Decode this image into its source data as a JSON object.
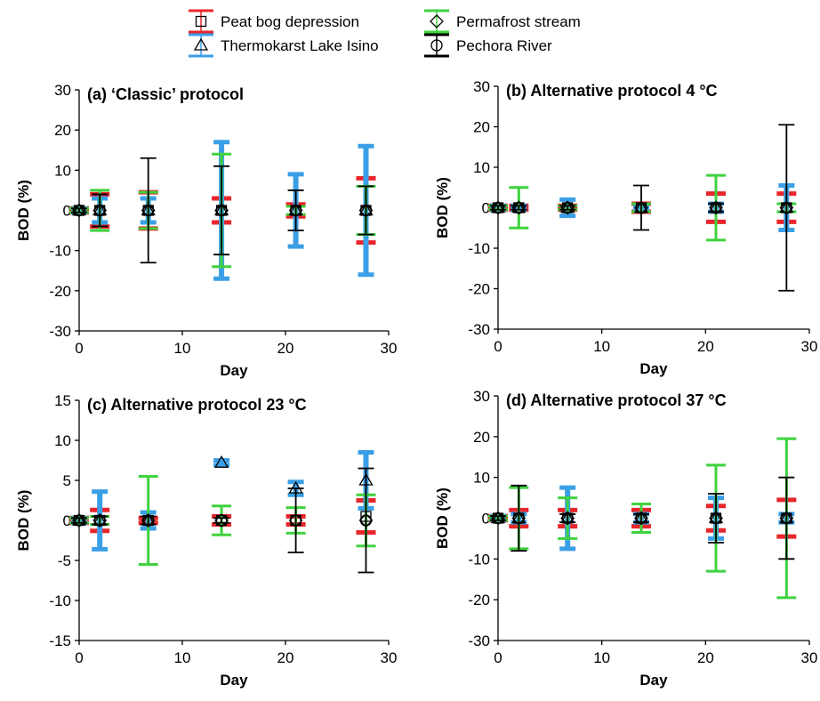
{
  "legend": {
    "items": [
      {
        "label": "Peat bog depression",
        "color": "#e8262b",
        "marker": "square"
      },
      {
        "label": "Permafrost stream",
        "color": "#3fd23f",
        "marker": "diamond"
      },
      {
        "label": "Thermokarst Lake Isino",
        "color": "#3b9fe6",
        "marker": "triangle"
      },
      {
        "label": "Pechora River",
        "color": "#000000",
        "marker": "circle"
      }
    ]
  },
  "chart_data": [
    {
      "type": "scatter",
      "panel": "a",
      "title": "(a) ‘Classic’ protocol",
      "xlabel": "Day",
      "ylabel": "BOD (%)",
      "xlim": [
        0,
        30
      ],
      "ylim": [
        -30,
        30
      ],
      "xticks": [
        "0",
        "10",
        "20",
        "30"
      ],
      "yticks": [
        "-30",
        "-20",
        "-10",
        "0",
        "10",
        "20",
        "30"
      ],
      "series": [
        {
          "name": "Peat bog depression",
          "x": [
            0,
            2,
            6.7,
            13.8,
            21,
            27.8
          ],
          "y": [
            0,
            0,
            0,
            0,
            0,
            0
          ],
          "err": [
            0.5,
            4,
            4.5,
            3,
            1.5,
            8
          ]
        },
        {
          "name": "Thermokarst Lake Isino",
          "x": [
            0,
            2,
            6.7,
            13.8,
            21,
            27.8
          ],
          "y": [
            0,
            0,
            0,
            0,
            0,
            0
          ],
          "err": [
            0.5,
            3,
            3,
            17,
            9,
            16
          ]
        },
        {
          "name": "Permafrost stream",
          "x": [
            0,
            2,
            6.7,
            13.8,
            21,
            27.8
          ],
          "y": [
            0,
            0,
            0,
            0,
            0,
            0
          ],
          "err": [
            0.5,
            5,
            4.5,
            14,
            1,
            6
          ]
        },
        {
          "name": "Pechora River",
          "x": [
            0,
            2,
            6.7,
            13.8,
            21,
            27.8
          ],
          "y": [
            0,
            0,
            0,
            0,
            0,
            0
          ],
          "err": [
            0.5,
            4,
            13,
            11,
            5,
            6
          ]
        }
      ]
    },
    {
      "type": "scatter",
      "panel": "b",
      "title": "(b) Alternative protocol 4 °C",
      "xlabel": "Day",
      "ylabel": "BOD (%)",
      "xlim": [
        0,
        30
      ],
      "ylim": [
        -30,
        30
      ],
      "xticks": [
        "0",
        "10",
        "20",
        "30"
      ],
      "yticks": [
        "-30",
        "-20",
        "-10",
        "0",
        "10",
        "20",
        "30"
      ],
      "series": [
        {
          "name": "Peat bog depression",
          "x": [
            0,
            2,
            6.7,
            13.8,
            21,
            27.8
          ],
          "y": [
            0,
            0,
            0,
            0,
            0,
            0
          ],
          "err": [
            0.5,
            0.5,
            0.5,
            1,
            3.5,
            3.5
          ]
        },
        {
          "name": "Thermokarst Lake Isino",
          "x": [
            0,
            2,
            6.7,
            13.8,
            21,
            27.8
          ],
          "y": [
            0,
            0,
            0,
            0,
            0,
            0
          ],
          "err": [
            0.5,
            0.5,
            2,
            0.5,
            1,
            5.5
          ]
        },
        {
          "name": "Permafrost stream",
          "x": [
            0,
            2,
            6.7,
            13.8,
            21,
            27.8
          ],
          "y": [
            0,
            0,
            0,
            0,
            0,
            0
          ],
          "err": [
            0.5,
            5,
            0.5,
            1,
            8,
            1
          ]
        },
        {
          "name": "Pechora River",
          "x": [
            0,
            2,
            6.7,
            13.8,
            21,
            27.8
          ],
          "y": [
            0,
            0,
            0,
            0,
            0,
            0
          ],
          "err": [
            0.5,
            0.5,
            0.5,
            5.5,
            1,
            20.5
          ]
        }
      ]
    },
    {
      "type": "scatter",
      "panel": "c",
      "title": "(c) Alternative protocol 23 °C",
      "xlabel": "Day",
      "ylabel": "BOD (%)",
      "xlim": [
        0,
        30
      ],
      "ylim": [
        -15,
        15
      ],
      "xticks": [
        "0",
        "10",
        "20",
        "30"
      ],
      "yticks": [
        "-15",
        "-10",
        "-5",
        "0",
        "5",
        "10",
        "15"
      ],
      "series": [
        {
          "name": "Peat bog depression",
          "x": [
            0,
            2,
            6.7,
            13.8,
            21,
            27.8
          ],
          "y": [
            0,
            0,
            0,
            0,
            0,
            0.5
          ],
          "err": [
            0.3,
            1.3,
            0.3,
            0.5,
            0.5,
            2
          ]
        },
        {
          "name": "Thermokarst Lake Isino",
          "x": [
            0,
            2,
            6.7,
            13.8,
            21,
            27.8
          ],
          "y": [
            0,
            0,
            0,
            7.2,
            4,
            5
          ],
          "err": [
            0.3,
            3.6,
            1,
            0.3,
            0.8,
            3.5
          ]
        },
        {
          "name": "Permafrost stream",
          "x": [
            0,
            2,
            6.7,
            13.8,
            21,
            27.8
          ],
          "y": [
            0,
            0,
            0,
            0,
            0,
            0
          ],
          "err": [
            0.3,
            0.5,
            5.5,
            1.8,
            1.6,
            3.2
          ]
        },
        {
          "name": "Pechora River",
          "x": [
            0,
            2,
            6.7,
            13.8,
            21,
            27.8
          ],
          "y": [
            0,
            0,
            0,
            0,
            0,
            0
          ],
          "err": [
            0.3,
            0.5,
            0.5,
            0.3,
            4,
            6.5
          ]
        }
      ]
    },
    {
      "type": "scatter",
      "panel": "d",
      "title": "(d) Alternative protocol 37 °C",
      "xlabel": "Day",
      "ylabel": "BOD (%)",
      "xlim": [
        0,
        30
      ],
      "ylim": [
        -30,
        30
      ],
      "xticks": [
        "0",
        "10",
        "20",
        "30"
      ],
      "yticks": [
        "-30",
        "-20",
        "-10",
        "0",
        "10",
        "20",
        "30"
      ],
      "series": [
        {
          "name": "Peat bog depression",
          "x": [
            0,
            2,
            6.7,
            13.8,
            21,
            27.8
          ],
          "y": [
            0,
            0,
            0,
            0,
            0,
            0
          ],
          "err": [
            0.5,
            2,
            2,
            2,
            3,
            4.5
          ]
        },
        {
          "name": "Thermokarst Lake Isino",
          "x": [
            0,
            2,
            6.7,
            13.8,
            21,
            27.8
          ],
          "y": [
            0,
            0,
            0,
            0,
            0,
            0
          ],
          "err": [
            0.5,
            1,
            7.5,
            1,
            5,
            1
          ]
        },
        {
          "name": "Permafrost stream",
          "x": [
            0,
            2,
            6.7,
            13.8,
            21,
            27.8
          ],
          "y": [
            0,
            0,
            0,
            0,
            0,
            0
          ],
          "err": [
            0.5,
            7.5,
            5,
            3.5,
            13,
            19.5
          ]
        },
        {
          "name": "Pechora River",
          "x": [
            0,
            2,
            6.7,
            13.8,
            21,
            27.8
          ],
          "y": [
            0,
            0,
            0,
            0,
            0,
            0
          ],
          "err": [
            0.5,
            8,
            1,
            1,
            6,
            10
          ]
        }
      ]
    }
  ]
}
